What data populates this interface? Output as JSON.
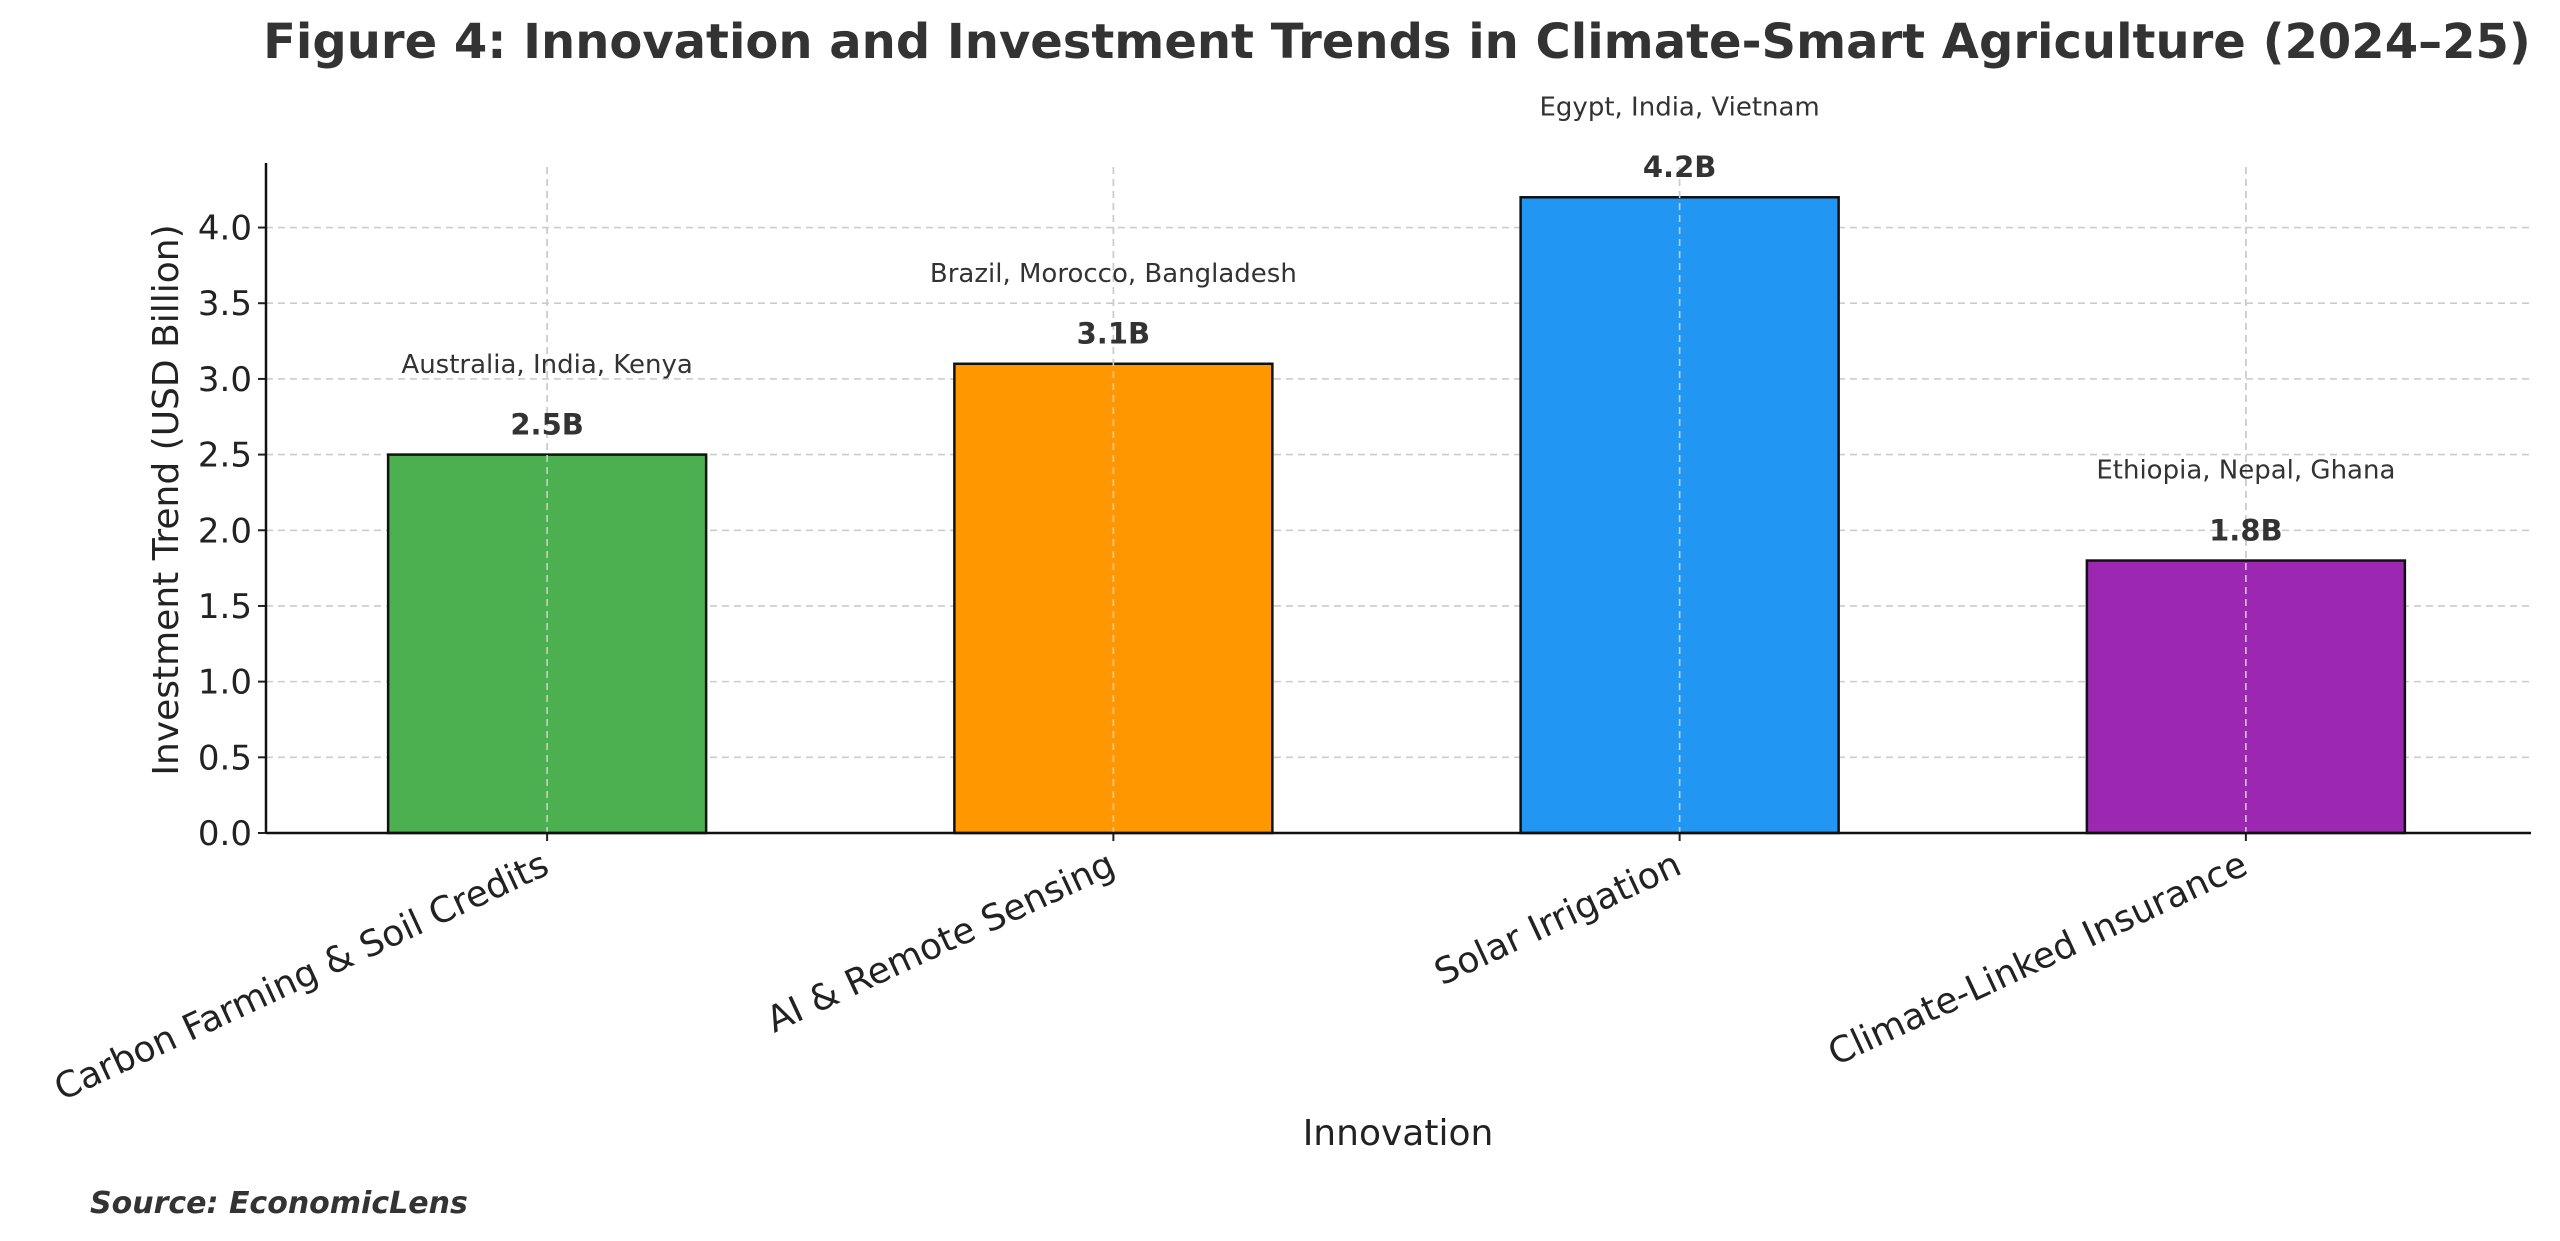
{
  "chart_data": {
    "type": "bar",
    "title": "Figure 4: Innovation and Investment Trends in Climate-Smart Agriculture (2024–25)",
    "xlabel": "Innovation",
    "ylabel": "Investment Trend (USD Billion)",
    "ylim": [
      0,
      4.4
    ],
    "yticks": [
      "0.0",
      "0.5",
      "1.0",
      "1.5",
      "2.0",
      "2.5",
      "3.0",
      "3.5",
      "4.0"
    ],
    "grid": true,
    "categories": [
      "Carbon Farming & Soil Credits",
      "AI & Remote Sensing",
      "Solar Irrigation",
      "Climate-Linked Insurance"
    ],
    "values": [
      2.5,
      3.1,
      4.2,
      1.8
    ],
    "value_labels": [
      "2.5B",
      "3.1B",
      "4.2B",
      "1.8B"
    ],
    "country_labels": [
      "Australia, India, Kenya",
      "Brazil, Morocco, Bangladesh",
      "Egypt, India, Vietnam",
      "Ethiopia, Nepal, Ghana"
    ],
    "colors": [
      "#4caf50",
      "#ff9800",
      "#2196f3",
      "#9c27b0"
    ],
    "source": "Source: EconomicLens"
  }
}
